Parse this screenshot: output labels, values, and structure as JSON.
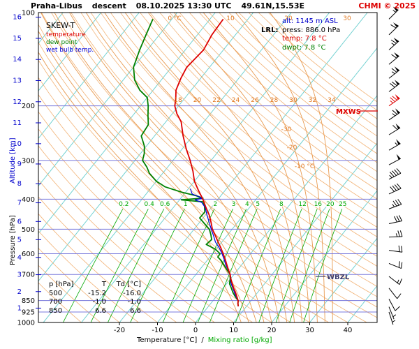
{
  "header": {
    "station": "Praha-Libus",
    "mode": "descent",
    "datetime": "08.10.2025 13:30 UTC",
    "coords": "49.61N,15.53E",
    "credit": "CHMI © 2025"
  },
  "legend": {
    "diagram": "SKEW-T",
    "temperature": "temperature",
    "dew_point": "dew point",
    "wet_bulb": "wet bulb temp."
  },
  "info": {
    "lrl": "LRL:",
    "alt_label": "alt:",
    "alt_value": "1145 m ASL",
    "press_label": "press:",
    "press_value": "886.0 hPa",
    "temp_label": "temp:",
    "temp_value": "7.8 °C",
    "dwpt_label": "dwpt:",
    "dwpt_value": "7.8 °C"
  },
  "markers": {
    "mxws": "MXWS",
    "wbzl": "WBZL"
  },
  "table": {
    "col_p": "p [hPa]",
    "col_t": "T",
    "col_td": "Td [°C]",
    "rows": [
      [
        "500",
        "-15.2",
        "-16.0"
      ],
      [
        "700",
        "-1.0",
        "-1.0"
      ],
      [
        "850",
        "6.6",
        "6.6"
      ]
    ]
  },
  "axes": {
    "pressure_title": "Pressure [hPa]",
    "altitude_title": "Altitude [km]",
    "x_title_temp": "Temperature [°C]",
    "x_title_sep": "/",
    "x_title_mix": "Mixing ratio [g/kg]",
    "pressure_ticks": [
      100,
      200,
      300,
      400,
      500,
      600,
      700,
      850,
      925,
      1000
    ],
    "altitude_ticks": [
      16,
      15,
      14,
      13,
      12,
      11,
      10,
      9,
      8,
      7,
      6,
      5,
      4,
      3,
      2,
      1
    ],
    "temp_ticks": [
      -20,
      -10,
      0,
      10,
      20,
      30,
      40
    ],
    "isotherm_labels": [
      "-30",
      "-20",
      "-10 °C"
    ],
    "adiabat_top_labels": [
      "0 °C",
      "10",
      "20",
      "30"
    ],
    "adiabat_mid_labels": [
      "18",
      "20",
      "22",
      "24",
      "26",
      "28",
      "30",
      "32",
      "34"
    ],
    "mixing_ratio_values": [
      0.2,
      0.4,
      0.6,
      1,
      2,
      3,
      4,
      5,
      8,
      12,
      16,
      20,
      25
    ]
  },
  "colors": {
    "temperature": "#dd0000",
    "dew_point": "#008000",
    "wet_bulb": "#0000dd",
    "isotherm": "#6fd0d0",
    "dry_adiabat": "#f2b275",
    "moist_adiabat": "#e89a50",
    "mixing": "#00a800",
    "pressure_line": "#7878dc",
    "altitude": "#0000cc",
    "orange_label": "#e07820",
    "credit": "#dd0000",
    "mxws": "#dd0000",
    "wbzl": "#3c3c6e",
    "barb": "#000000"
  },
  "chart_data": {
    "type": "line",
    "variant": "skew-t-log-p sounding",
    "pressure_axis": {
      "min": 100,
      "max": 1000,
      "scale": "log",
      "units": "hPa"
    },
    "temp_axis": {
      "ticks": [
        -20,
        -10,
        0,
        10,
        20,
        30,
        40
      ],
      "units": "°C"
    },
    "surface": {
      "alt_m": 1145,
      "press_hpa": 886.0,
      "temp_c": 7.8,
      "dwpt_c": 7.8
    },
    "levels_table": [
      {
        "p": 500,
        "T": -15.2,
        "Td": -16.0
      },
      {
        "p": 700,
        "T": -1.0,
        "Td": -1.0
      },
      {
        "p": 850,
        "T": 6.6,
        "Td": 6.6
      }
    ],
    "series": [
      {
        "name": "temperature",
        "color": "#dd0000",
        "points": [
          [
            105,
            -56.5
          ],
          [
            118,
            -56.2
          ],
          [
            132,
            -55.2
          ],
          [
            150,
            -56.0
          ],
          [
            163,
            -55.2
          ],
          [
            178,
            -54.0
          ],
          [
            190,
            -52.2
          ],
          [
            200,
            -51.0
          ],
          [
            212,
            -48.8
          ],
          [
            225,
            -46.0
          ],
          [
            250,
            -42.5
          ],
          [
            275,
            -39.0
          ],
          [
            300,
            -35.5
          ],
          [
            325,
            -32.5
          ],
          [
            350,
            -30.0
          ],
          [
            375,
            -27.0
          ],
          [
            400,
            -24.0
          ],
          [
            425,
            -21.5
          ],
          [
            450,
            -19.0
          ],
          [
            475,
            -17.0
          ],
          [
            500,
            -15.2
          ],
          [
            525,
            -13.0
          ],
          [
            550,
            -11.0
          ],
          [
            575,
            -9.0
          ],
          [
            600,
            -7.2
          ],
          [
            625,
            -5.5
          ],
          [
            650,
            -4.0
          ],
          [
            675,
            -2.5
          ],
          [
            700,
            -1.0
          ],
          [
            725,
            0.2
          ],
          [
            750,
            1.5
          ],
          [
            775,
            2.8
          ],
          [
            800,
            4.2
          ],
          [
            825,
            5.4
          ],
          [
            850,
            6.6
          ],
          [
            870,
            7.2
          ],
          [
            886,
            7.8
          ]
        ]
      },
      {
        "name": "dew_point",
        "color": "#008000",
        "points": [
          [
            105,
            -75.0
          ],
          [
            118,
            -73.5
          ],
          [
            132,
            -72.0
          ],
          [
            150,
            -70.0
          ],
          [
            165,
            -67.0
          ],
          [
            178,
            -63.5
          ],
          [
            188,
            -60.0
          ],
          [
            200,
            -58.0
          ],
          [
            215,
            -56.0
          ],
          [
            230,
            -54.0
          ],
          [
            250,
            -53.5
          ],
          [
            270,
            -50.5
          ],
          [
            285,
            -49.0
          ],
          [
            300,
            -48.0
          ],
          [
            315,
            -45.5
          ],
          [
            330,
            -43.5
          ],
          [
            350,
            -40.0
          ],
          [
            365,
            -36.5
          ],
          [
            380,
            -31.0
          ],
          [
            390,
            -26.5
          ],
          [
            397,
            -24.2
          ],
          [
            402,
            -29.5
          ],
          [
            408,
            -23.4
          ],
          [
            420,
            -22.2
          ],
          [
            440,
            -20.8
          ],
          [
            460,
            -20.9
          ],
          [
            480,
            -18.4
          ],
          [
            500,
            -16.0
          ],
          [
            520,
            -14.5
          ],
          [
            540,
            -13.2
          ],
          [
            560,
            -13.6
          ],
          [
            580,
            -10.2
          ],
          [
            600,
            -8.0
          ],
          [
            615,
            -7.9
          ],
          [
            630,
            -6.4
          ],
          [
            650,
            -4.8
          ],
          [
            675,
            -2.9
          ],
          [
            700,
            -1.0
          ],
          [
            725,
            0.0
          ],
          [
            750,
            0.8
          ],
          [
            775,
            2.2
          ],
          [
            800,
            3.5
          ],
          [
            825,
            5.0
          ],
          [
            850,
            6.6
          ],
          [
            870,
            7.2
          ],
          [
            886,
            7.8
          ]
        ]
      },
      {
        "name": "wet_bulb",
        "color": "#0000dd",
        "points": [
          [
            370,
            -29.5
          ],
          [
            385,
            -27.9
          ],
          [
            397,
            -24.3
          ],
          [
            402,
            -25.9
          ],
          [
            410,
            -23.6
          ],
          [
            425,
            -21.7
          ],
          [
            450,
            -19.6
          ],
          [
            475,
            -17.5
          ],
          [
            500,
            -15.5
          ],
          [
            525,
            -13.5
          ],
          [
            550,
            -11.7
          ],
          [
            575,
            -9.4
          ],
          [
            600,
            -7.5
          ],
          [
            625,
            -5.8
          ],
          [
            650,
            -4.3
          ],
          [
            675,
            -2.6
          ],
          [
            700,
            -1.0
          ],
          [
            725,
            0.1
          ],
          [
            750,
            1.2
          ],
          [
            775,
            2.6
          ],
          [
            800,
            3.9
          ],
          [
            825,
            5.2
          ],
          [
            850,
            6.6
          ],
          [
            870,
            7.2
          ],
          [
            886,
            7.8
          ]
        ]
      }
    ],
    "wind_barbs": [
      {
        "p": 105,
        "kt": 55,
        "dir": 45
      },
      {
        "p": 118,
        "kt": 60,
        "dir": 46
      },
      {
        "p": 132,
        "kt": 65,
        "dir": 48
      },
      {
        "p": 147,
        "kt": 60,
        "dir": 50
      },
      {
        "p": 163,
        "kt": 65,
        "dir": 52
      },
      {
        "p": 180,
        "kt": 70,
        "dir": 53
      },
      {
        "p": 200,
        "kt": 75,
        "dir": 55,
        "max": true
      },
      {
        "p": 222,
        "kt": 65,
        "dir": 56
      },
      {
        "p": 248,
        "kt": 60,
        "dir": 58
      },
      {
        "p": 278,
        "kt": 55,
        "dir": 60
      },
      {
        "p": 310,
        "kt": 50,
        "dir": 62
      },
      {
        "p": 345,
        "kt": 45,
        "dir": 63
      },
      {
        "p": 385,
        "kt": 40,
        "dir": 65
      },
      {
        "p": 430,
        "kt": 35,
        "dir": 70
      },
      {
        "p": 480,
        "kt": 30,
        "dir": 78
      },
      {
        "p": 530,
        "kt": 25,
        "dir": 88
      },
      {
        "p": 585,
        "kt": 20,
        "dir": 98
      },
      {
        "p": 645,
        "kt": 20,
        "dir": 112
      },
      {
        "p": 710,
        "kt": 15,
        "dir": 128
      },
      {
        "p": 775,
        "kt": 10,
        "dir": 142
      },
      {
        "p": 840,
        "kt": 10,
        "dir": 152
      },
      {
        "p": 890,
        "kt": 5,
        "dir": 158
      },
      {
        "p": 925,
        "kt": 5,
        "dir": 162
      }
    ]
  }
}
